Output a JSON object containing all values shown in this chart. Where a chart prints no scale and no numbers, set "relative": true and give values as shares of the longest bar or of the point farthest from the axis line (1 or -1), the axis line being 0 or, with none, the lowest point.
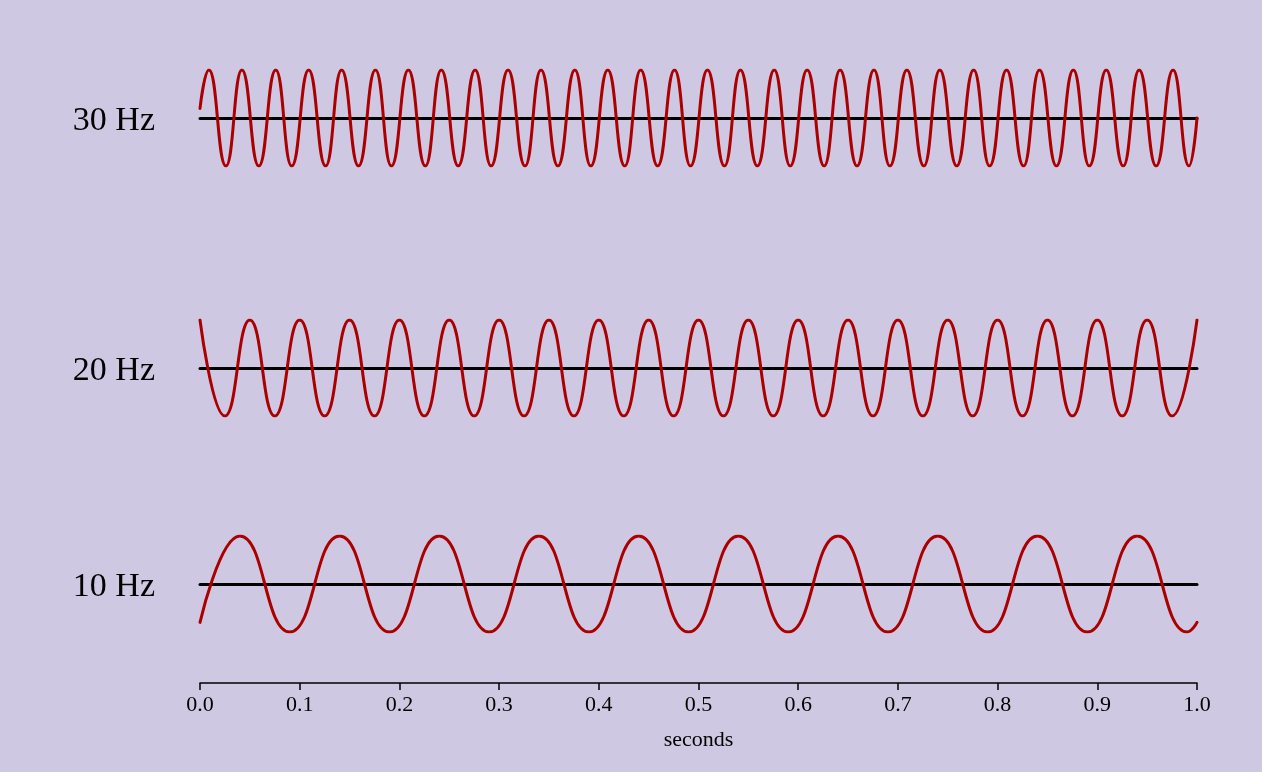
{
  "chart_data": [
    {
      "type": "line",
      "relative": true,
      "ylabel": "30 Hz",
      "color": "#aa0000",
      "xlim": [
        0,
        1
      ],
      "tick_labels": false,
      "x": [
        0,
        0.009,
        0.026,
        0.042,
        0.059,
        0.076,
        0.092,
        0.109,
        0.126,
        0.142,
        0.159,
        0.176,
        0.192,
        0.209,
        0.226,
        0.242,
        0.259,
        0.276,
        0.292,
        0.309,
        0.326,
        0.342,
        0.359,
        0.376,
        0.392,
        0.409,
        0.426,
        0.442,
        0.459,
        0.476,
        0.492,
        0.509,
        0.526,
        0.542,
        0.559,
        0.576,
        0.592,
        0.609,
        0.626,
        0.642,
        0.659,
        0.676,
        0.692,
        0.709,
        0.726,
        0.742,
        0.759,
        0.776,
        0.792,
        0.809,
        0.826,
        0.842,
        0.859,
        0.876,
        0.892,
        0.909,
        0.926,
        0.942,
        0.959,
        0.976,
        0.992,
        1
      ],
      "values": [
        0.2,
        1,
        -1,
        1,
        -1,
        1,
        -1,
        1,
        -1,
        1,
        -1,
        1,
        -1,
        1,
        -1,
        1,
        -1,
        1,
        -1,
        1,
        -1,
        1,
        -1,
        1,
        -1,
        1,
        -1,
        1,
        -1,
        1,
        -1,
        1,
        -1,
        1,
        -1,
        1,
        -1,
        1,
        -1,
        1,
        -1,
        1,
        -1,
        1,
        -1,
        1,
        -1,
        1,
        -1,
        1,
        -1,
        1,
        -1,
        1,
        -1,
        1,
        -1,
        1,
        -1,
        1,
        -1,
        0
      ]
    },
    {
      "type": "line",
      "relative": true,
      "ylabel": "20 Hz",
      "color": "#aa0000",
      "xlim": [
        0,
        1
      ],
      "tick_labels": false,
      "x": [
        0,
        0.025,
        0.05,
        0.075,
        0.1,
        0.125,
        0.15,
        0.175,
        0.2,
        0.225,
        0.25,
        0.275,
        0.3,
        0.325,
        0.35,
        0.375,
        0.4,
        0.425,
        0.45,
        0.475,
        0.5,
        0.525,
        0.55,
        0.575,
        0.6,
        0.625,
        0.65,
        0.675,
        0.7,
        0.725,
        0.75,
        0.775,
        0.8,
        0.825,
        0.85,
        0.875,
        0.9,
        0.925,
        0.95,
        0.975,
        1
      ],
      "values": [
        1,
        -1,
        1,
        -1,
        1,
        -1,
        1,
        -1,
        1,
        -1,
        1,
        -1,
        1,
        -1,
        1,
        -1,
        1,
        -1,
        1,
        -1,
        1,
        -1,
        1,
        -1,
        1,
        -1,
        1,
        -1,
        1,
        -1,
        1,
        -1,
        1,
        -1,
        1,
        -1,
        1,
        -1,
        1,
        -1,
        1
      ]
    },
    {
      "type": "line",
      "relative": true,
      "ylabel": "10 Hz",
      "xlabel": "seconds",
      "color": "#aa0000",
      "xlim": [
        0,
        1
      ],
      "tick_labels": "x",
      "xticks": [
        {
          "value": 0,
          "label": "0.0"
        },
        {
          "value": 0.1,
          "label": "0.1"
        },
        {
          "value": 0.2,
          "label": "0.2"
        },
        {
          "value": 0.3,
          "label": "0.3"
        },
        {
          "value": 0.4,
          "label": "0.4"
        },
        {
          "value": 0.5,
          "label": "0.5"
        },
        {
          "value": 0.6,
          "label": "0.6"
        },
        {
          "value": 0.7,
          "label": "0.7"
        },
        {
          "value": 0.8,
          "label": "0.8"
        },
        {
          "value": 0.9,
          "label": "0.9"
        },
        {
          "value": 1,
          "label": "1.0"
        }
      ],
      "x": [
        0,
        0.04,
        0.09,
        0.14,
        0.19,
        0.24,
        0.29,
        0.34,
        0.39,
        0.44,
        0.49,
        0.54,
        0.59,
        0.64,
        0.69,
        0.74,
        0.79,
        0.84,
        0.89,
        0.94,
        0.99,
        1
      ],
      "values": [
        -0.8,
        1,
        -1,
        1,
        -1,
        1,
        -1,
        1,
        -1,
        1,
        -1,
        1,
        -1,
        1,
        -1,
        1,
        -1,
        1,
        -1,
        1,
        -1,
        -0.8
      ]
    }
  ]
}
